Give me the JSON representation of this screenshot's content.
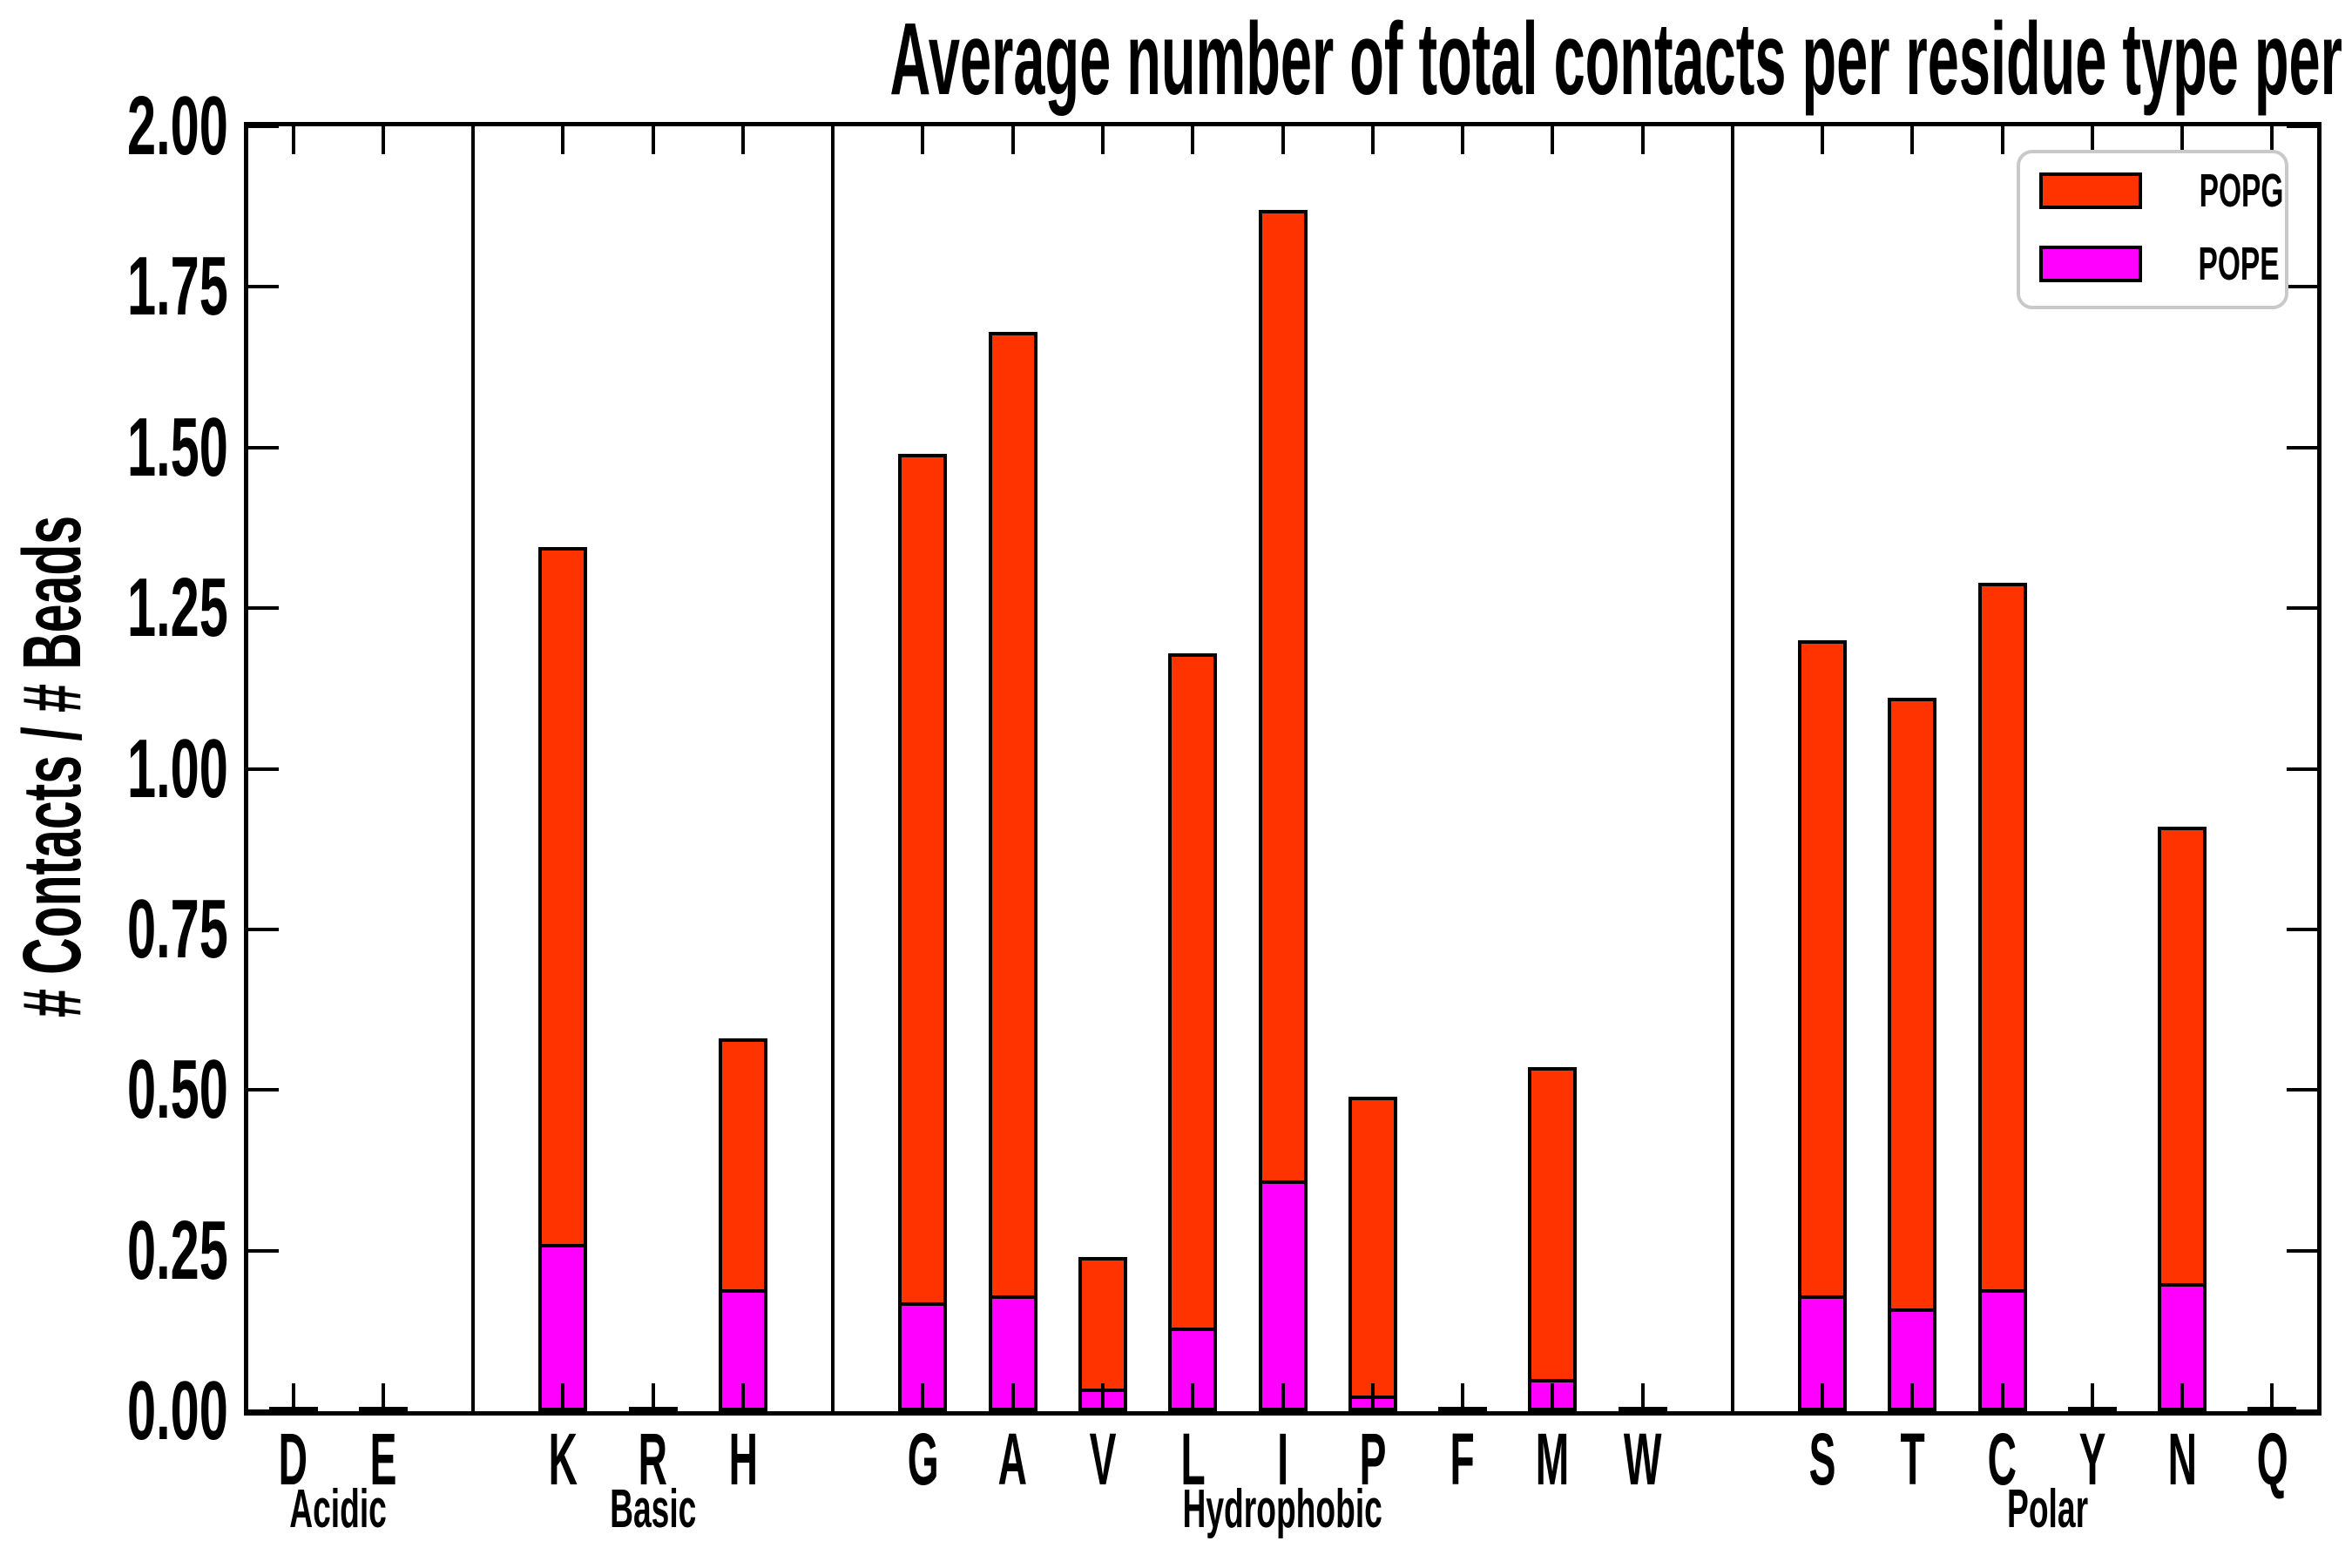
{
  "chart_data": {
    "type": "bar",
    "stacked": true,
    "title": "Average number of total contacts per residue type per bead",
    "ylabel": "# Contacts / # Beads",
    "xlabel": "",
    "ylim": [
      0.0,
      2.0
    ],
    "yticks": [
      {
        "value": 0.0,
        "label": "0.00"
      },
      {
        "value": 0.25,
        "label": "0.25"
      },
      {
        "value": 0.5,
        "label": "0.50"
      },
      {
        "value": 0.75,
        "label": "0.75"
      },
      {
        "value": 1.0,
        "label": "1.00"
      },
      {
        "value": 1.25,
        "label": "1.25"
      },
      {
        "value": 1.5,
        "label": "1.50"
      },
      {
        "value": 1.75,
        "label": "1.75"
      },
      {
        "value": 2.0,
        "label": "2.00"
      }
    ],
    "grid": false,
    "groups": [
      {
        "label": "Acidic",
        "categories": [
          "D",
          "E"
        ]
      },
      {
        "label": "Basic",
        "categories": [
          "K",
          "R",
          "H"
        ]
      },
      {
        "label": "Hydrophobic",
        "categories": [
          "G",
          "A",
          "V",
          "L",
          "I",
          "P",
          "F",
          "M",
          "W"
        ]
      },
      {
        "label": "Polar",
        "categories": [
          "S",
          "T",
          "C",
          "Y",
          "N",
          "Q"
        ]
      }
    ],
    "series": [
      {
        "name": "POPE",
        "color": "#FF00FF",
        "values": {
          "D": 0.003,
          "E": 0.003,
          "K": 0.26,
          "R": 0.003,
          "H": 0.19,
          "G": 0.17,
          "A": 0.18,
          "V": 0.035,
          "L": 0.13,
          "I": 0.36,
          "P": 0.025,
          "F": 0.003,
          "M": 0.05,
          "W": 0.003,
          "S": 0.18,
          "T": 0.16,
          "C": 0.19,
          "Y": 0.003,
          "N": 0.2,
          "Q": 0.003
        }
      },
      {
        "name": "POPG",
        "color": "#FF3300",
        "values": {
          "D": 0.003,
          "E": 0.003,
          "K": 1.085,
          "R": 0.003,
          "H": 0.39,
          "G": 1.32,
          "A": 1.5,
          "V": 0.205,
          "L": 1.05,
          "I": 1.51,
          "P": 0.465,
          "F": 0.003,
          "M": 0.485,
          "W": 0.003,
          "S": 1.02,
          "T": 0.95,
          "C": 1.1,
          "Y": 0.003,
          "N": 0.71,
          "Q": 0.003
        }
      }
    ],
    "totals": {
      "D": 0.006,
      "E": 0.006,
      "K": 1.345,
      "R": 0.006,
      "H": 0.58,
      "G": 1.49,
      "A": 1.68,
      "V": 0.24,
      "L": 1.18,
      "I": 1.87,
      "P": 0.49,
      "F": 0.006,
      "M": 0.535,
      "W": 0.006,
      "S": 1.2,
      "T": 1.11,
      "C": 1.29,
      "Y": 0.006,
      "N": 0.91,
      "Q": 0.006
    },
    "legend": {
      "position": "upper right",
      "entries": [
        {
          "label": "POPG",
          "color": "#FF3300"
        },
        {
          "label": "POPE",
          "color": "#FF00FF"
        }
      ]
    },
    "colors": {
      "bar_edge": "#000000",
      "axes": "#000000",
      "background": "#FFFFFF",
      "legend_border": "#C9C9C9"
    }
  }
}
